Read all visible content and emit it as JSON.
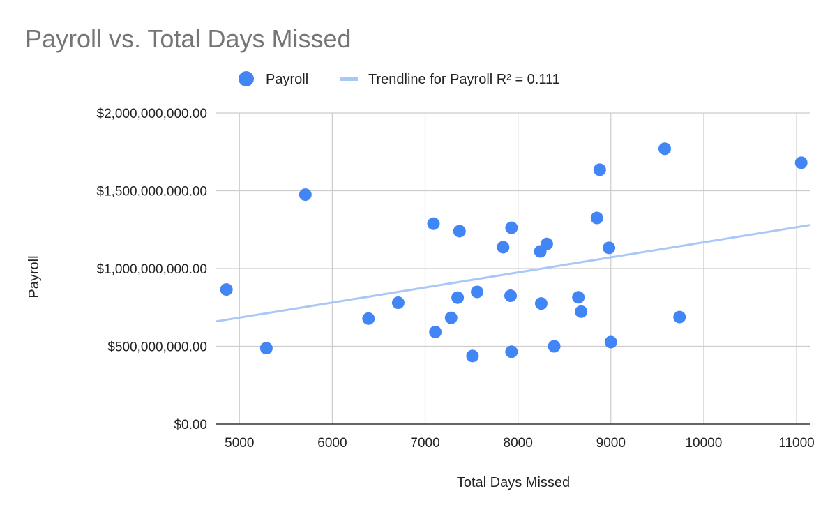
{
  "chart_data": {
    "type": "scatter",
    "title": "Payroll vs. Total Days Missed",
    "xlabel": "Total Days Missed",
    "ylabel": "Payroll",
    "xlim": [
      4750,
      11150
    ],
    "ylim": [
      0,
      2000000000
    ],
    "x_ticks": [
      5000,
      6000,
      7000,
      8000,
      9000,
      10000,
      11000
    ],
    "x_tick_labels": [
      "5000",
      "6000",
      "7000",
      "8000",
      "9000",
      "10000",
      "11000"
    ],
    "y_ticks": [
      0,
      500000000,
      1000000000,
      1500000000,
      2000000000
    ],
    "y_tick_labels": [
      "$0.00",
      "$500,000,000.00",
      "$1,000,000,000.00",
      "$1,500,000,000.00",
      "$2,000,000,000.00"
    ],
    "grid": true,
    "legend_position": "top",
    "series": [
      {
        "name": "Payroll",
        "color": "#4285f4",
        "points": [
          {
            "x": 4860,
            "y": 865000000
          },
          {
            "x": 5290,
            "y": 488000000
          },
          {
            "x": 5710,
            "y": 1475000000
          },
          {
            "x": 6390,
            "y": 678000000
          },
          {
            "x": 6710,
            "y": 780000000
          },
          {
            "x": 7090,
            "y": 1288000000
          },
          {
            "x": 7110,
            "y": 592000000
          },
          {
            "x": 7280,
            "y": 683000000
          },
          {
            "x": 7350,
            "y": 813000000
          },
          {
            "x": 7370,
            "y": 1240000000
          },
          {
            "x": 7510,
            "y": 438000000
          },
          {
            "x": 7560,
            "y": 850000000
          },
          {
            "x": 7840,
            "y": 1137000000
          },
          {
            "x": 7920,
            "y": 825000000
          },
          {
            "x": 7930,
            "y": 1262000000
          },
          {
            "x": 7930,
            "y": 465000000
          },
          {
            "x": 8240,
            "y": 1110000000
          },
          {
            "x": 8250,
            "y": 775000000
          },
          {
            "x": 8310,
            "y": 1158000000
          },
          {
            "x": 8390,
            "y": 500000000
          },
          {
            "x": 8650,
            "y": 815000000
          },
          {
            "x": 8680,
            "y": 723000000
          },
          {
            "x": 8850,
            "y": 1325000000
          },
          {
            "x": 8880,
            "y": 1635000000
          },
          {
            "x": 8980,
            "y": 1133000000
          },
          {
            "x": 9000,
            "y": 527000000
          },
          {
            "x": 9580,
            "y": 1770000000
          },
          {
            "x": 9740,
            "y": 688000000
          },
          {
            "x": 11050,
            "y": 1680000000
          }
        ]
      }
    ],
    "trendline": {
      "name": "Trendline for Payroll R² = 0.111",
      "color": "#a9c8f9",
      "x": [
        4750,
        11150
      ],
      "y": [
        660000000,
        1280000000
      ]
    }
  }
}
